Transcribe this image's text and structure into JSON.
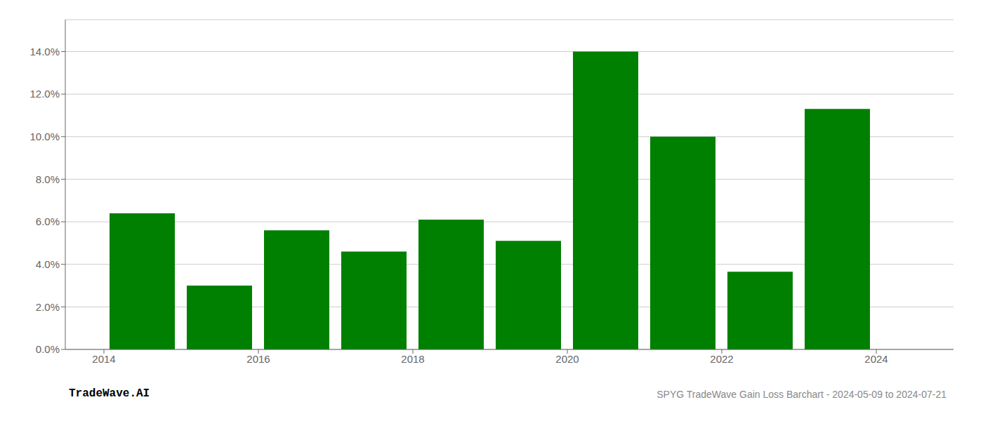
{
  "chart_data": {
    "type": "bar",
    "x": [
      2014,
      2015,
      2016,
      2017,
      2018,
      2019,
      2020,
      2021,
      2022,
      2023
    ],
    "values": [
      0.064,
      0.03,
      0.056,
      0.046,
      0.061,
      0.051,
      0.14,
      0.1,
      0.0365,
      0.113
    ],
    "color": "#008000",
    "xlim": [
      2013.0,
      2024.5
    ],
    "xticks": [
      {
        "value": 2013.5,
        "label": "2014"
      },
      {
        "value": 2015.5,
        "label": "2016"
      },
      {
        "value": 2017.5,
        "label": "2018"
      },
      {
        "value": 2019.5,
        "label": "2020"
      },
      {
        "value": 2021.5,
        "label": "2022"
      },
      {
        "value": 2023.5,
        "label": "2024"
      }
    ],
    "ylim": [
      0,
      0.155
    ],
    "yticks": [
      {
        "value": 0.0,
        "label": "0.0%"
      },
      {
        "value": 0.02,
        "label": "2.0%"
      },
      {
        "value": 0.04,
        "label": "4.0%"
      },
      {
        "value": 0.06,
        "label": "6.0%"
      },
      {
        "value": 0.08,
        "label": "8.0%"
      },
      {
        "value": 0.1,
        "label": "10.0%"
      },
      {
        "value": 0.12,
        "label": "12.0%"
      },
      {
        "value": 0.14,
        "label": "14.0%"
      }
    ],
    "grid": true,
    "annotations": [
      {
        "text": "TradeWave.AI",
        "color": "#000000"
      },
      {
        "text": "SPYG TradeWave Gain Loss Barchart - 2024-05-09 to 2024-07-21",
        "color": "#888888"
      }
    ]
  }
}
